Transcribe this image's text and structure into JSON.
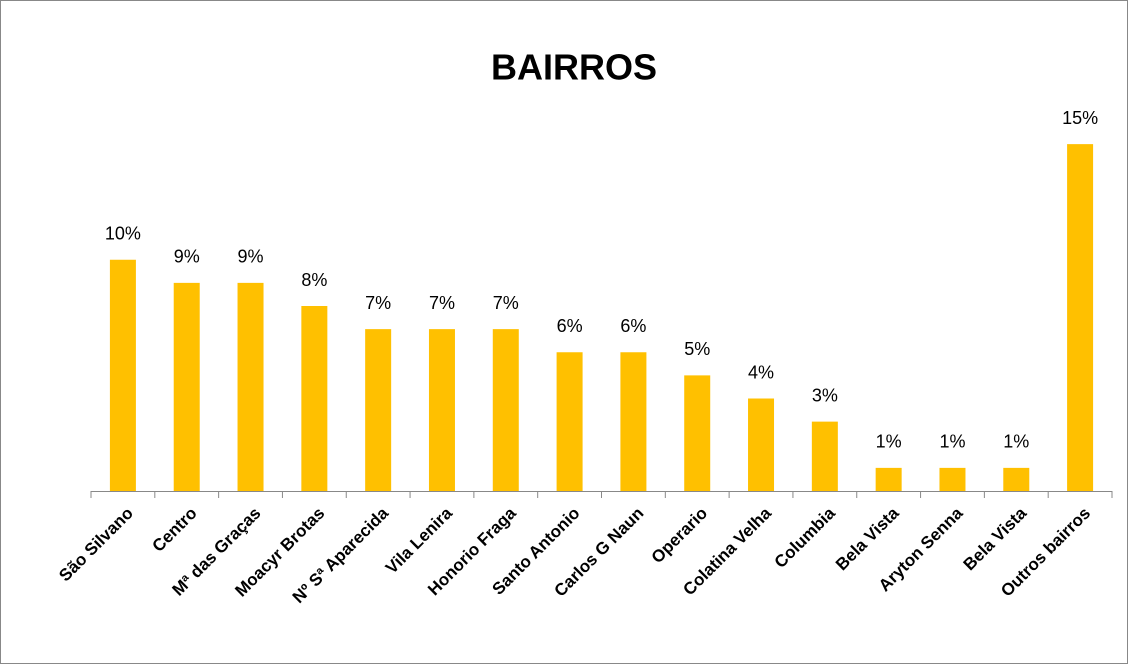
{
  "chart_data": {
    "type": "bar",
    "title": "BAIRROS",
    "categories": [
      "São Silvano",
      "Centro",
      "Mª das Graças",
      "Moacyr Brotas",
      "Nº Sª Aparecida",
      "Vila Lenira",
      "Honorio Fraga",
      "Santo Antonio",
      "Carlos G Naun",
      "Operario",
      "Colatina Velha",
      "Columbia",
      "Bela Vista",
      "Aryton Senna",
      "Bela Vista",
      "Outros bairros"
    ],
    "values": [
      10,
      9,
      9,
      8,
      7,
      7,
      7,
      6,
      6,
      5,
      4,
      3,
      1,
      1,
      1,
      15
    ],
    "value_labels": [
      "10%",
      "9%",
      "9%",
      "8%",
      "7%",
      "7%",
      "7%",
      "6%",
      "6%",
      "5%",
      "4%",
      "3%",
      "1%",
      "1%",
      "1%",
      "15%"
    ],
    "color": "#ffc000",
    "ylim": [
      0,
      16
    ]
  }
}
